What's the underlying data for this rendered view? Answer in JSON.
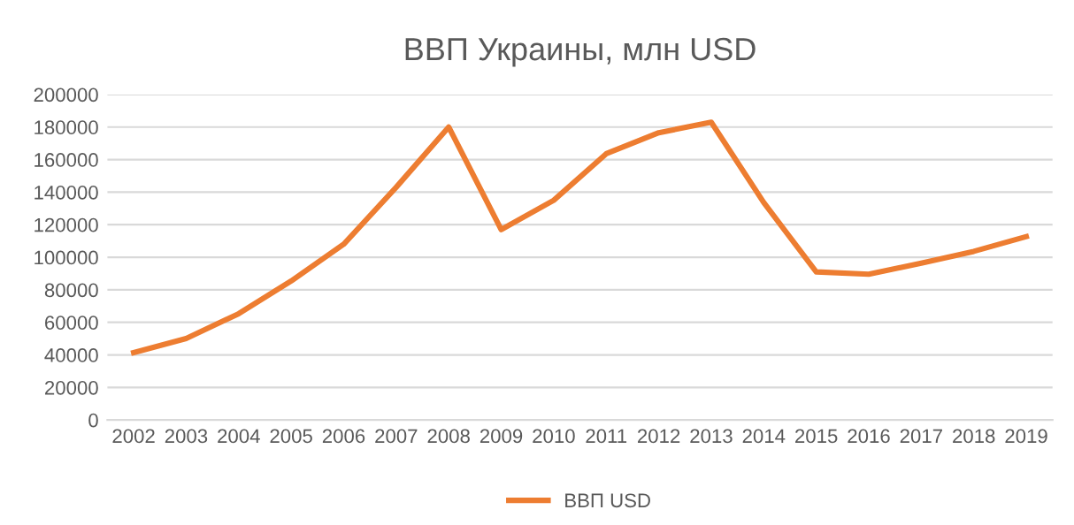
{
  "chart_data": {
    "type": "line",
    "title": "ВВП Украины, млн USD",
    "categories": [
      "2002",
      "2003",
      "2004",
      "2005",
      "2006",
      "2007",
      "2008",
      "2009",
      "2010",
      "2011",
      "2012",
      "2013",
      "2014",
      "2015",
      "2016",
      "2017",
      "2018",
      "2019"
    ],
    "series": [
      {
        "name": "ВВП USD",
        "color": "#ed7d31",
        "values": [
          41400,
          50100,
          65300,
          85400,
          108000,
          143000,
          180000,
          117000,
          135000,
          163600,
          176500,
          183000,
          133600,
          91000,
          89600,
          96400,
          103600,
          112700
        ]
      }
    ],
    "ylim": [
      0,
      200000
    ],
    "yticks": [
      0,
      20000,
      40000,
      60000,
      80000,
      100000,
      120000,
      140000,
      160000,
      180000,
      200000
    ],
    "grid": "y",
    "legend": "bottom",
    "marker": "none",
    "line_style": "solid"
  }
}
